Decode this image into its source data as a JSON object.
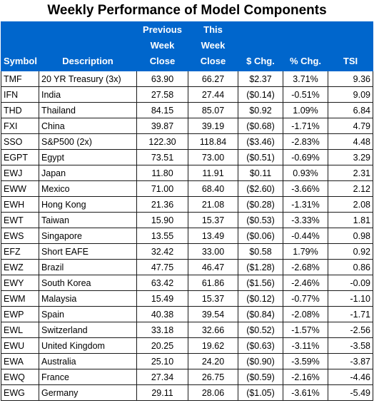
{
  "title": "Weekly Performance of Model Components",
  "columns": {
    "symbol": "Symbol",
    "description": "Description",
    "prev_close": [
      "Previous",
      "Week",
      "Close"
    ],
    "this_close": [
      "This",
      "Week",
      "Close"
    ],
    "dollar_chg": "$ Chg.",
    "pct_chg": "% Chg.",
    "tsi": "TSI"
  },
  "colors": {
    "header_bg": "#0066cc",
    "positive": "#13a23a",
    "negative": "#c00000"
  },
  "rows": [
    {
      "symbol": "TMF",
      "description": "20 YR Treasury (3x)",
      "prev": "63.90",
      "this": "66.27",
      "chg": "$2.37",
      "pct": "3.71%",
      "tsi": "9.36",
      "dir": "pos",
      "tsi_dir": "pos"
    },
    {
      "symbol": "IFN",
      "description": "India",
      "prev": "27.58",
      "this": "27.44",
      "chg": "($0.14)",
      "pct": "-0.51%",
      "tsi": "9.09",
      "dir": "neg",
      "tsi_dir": "pos"
    },
    {
      "symbol": "THD",
      "description": "Thailand",
      "prev": "84.15",
      "this": "85.07",
      "chg": "$0.92",
      "pct": "1.09%",
      "tsi": "6.84",
      "dir": "pos",
      "tsi_dir": "pos"
    },
    {
      "symbol": "FXI",
      "description": "China",
      "prev": "39.87",
      "this": "39.19",
      "chg": "($0.68)",
      "pct": "-1.71%",
      "tsi": "4.79",
      "dir": "neg",
      "tsi_dir": "pos"
    },
    {
      "symbol": "SSO",
      "description": "S&P500 (2x)",
      "prev": "122.30",
      "this": "118.84",
      "chg": "($3.46)",
      "pct": "-2.83%",
      "tsi": "4.48",
      "dir": "neg",
      "tsi_dir": "pos"
    },
    {
      "symbol": "EGPT",
      "description": "Egypt",
      "prev": "73.51",
      "this": "73.00",
      "chg": "($0.51)",
      "pct": "-0.69%",
      "tsi": "3.29",
      "dir": "neg",
      "tsi_dir": "pos"
    },
    {
      "symbol": "EWJ",
      "description": "Japan",
      "prev": "11.80",
      "this": "11.91",
      "chg": "$0.11",
      "pct": "0.93%",
      "tsi": "2.31",
      "dir": "pos",
      "tsi_dir": "pos"
    },
    {
      "symbol": "EWW",
      "description": "Mexico",
      "prev": "71.00",
      "this": "68.40",
      "chg": "($2.60)",
      "pct": "-3.66%",
      "tsi": "2.12",
      "dir": "neg",
      "tsi_dir": "pos"
    },
    {
      "symbol": "EWH",
      "description": "Hong Kong",
      "prev": "21.36",
      "this": "21.08",
      "chg": "($0.28)",
      "pct": "-1.31%",
      "tsi": "2.08",
      "dir": "neg",
      "tsi_dir": "pos"
    },
    {
      "symbol": "EWT",
      "description": "Taiwan",
      "prev": "15.90",
      "this": "15.37",
      "chg": "($0.53)",
      "pct": "-3.33%",
      "tsi": "1.81",
      "dir": "neg",
      "tsi_dir": "pos"
    },
    {
      "symbol": "EWS",
      "description": "Singapore",
      "prev": "13.55",
      "this": "13.49",
      "chg": "($0.06)",
      "pct": "-0.44%",
      "tsi": "0.98",
      "dir": "neg",
      "tsi_dir": "pos"
    },
    {
      "symbol": "EFZ",
      "description": "Short EAFE",
      "prev": "32.42",
      "this": "33.00",
      "chg": "$0.58",
      "pct": "1.79%",
      "tsi": "0.92",
      "dir": "pos",
      "tsi_dir": "pos"
    },
    {
      "symbol": "EWZ",
      "description": "Brazil",
      "prev": "47.75",
      "this": "46.47",
      "chg": "($1.28)",
      "pct": "-2.68%",
      "tsi": "0.86",
      "dir": "neg",
      "tsi_dir": "pos"
    },
    {
      "symbol": "EWY",
      "description": "South Korea",
      "prev": "63.42",
      "this": "61.86",
      "chg": "($1.56)",
      "pct": "-2.46%",
      "tsi": "-0.09",
      "dir": "neg",
      "tsi_dir": "neg"
    },
    {
      "symbol": "EWM",
      "description": "Malaysia",
      "prev": "15.49",
      "this": "15.37",
      "chg": "($0.12)",
      "pct": "-0.77%",
      "tsi": "-1.10",
      "dir": "neg",
      "tsi_dir": "neg"
    },
    {
      "symbol": "EWP",
      "description": "Spain",
      "prev": "40.38",
      "this": "39.54",
      "chg": "($0.84)",
      "pct": "-2.08%",
      "tsi": "-1.71",
      "dir": "neg",
      "tsi_dir": "neg"
    },
    {
      "symbol": "EWL",
      "description": "Switzerland",
      "prev": "33.18",
      "this": "32.66",
      "chg": "($0.52)",
      "pct": "-1.57%",
      "tsi": "-2.56",
      "dir": "neg",
      "tsi_dir": "neg"
    },
    {
      "symbol": "EWU",
      "description": "United Kingdom",
      "prev": "20.25",
      "this": "19.62",
      "chg": "($0.63)",
      "pct": "-3.11%",
      "tsi": "-3.58",
      "dir": "neg",
      "tsi_dir": "neg"
    },
    {
      "symbol": "EWA",
      "description": "Australia",
      "prev": "25.10",
      "this": "24.20",
      "chg": "($0.90)",
      "pct": "-3.59%",
      "tsi": "-3.87",
      "dir": "neg",
      "tsi_dir": "neg"
    },
    {
      "symbol": "EWQ",
      "description": "France",
      "prev": "27.34",
      "this": "26.75",
      "chg": "($0.59)",
      "pct": "-2.16%",
      "tsi": "-4.46",
      "dir": "neg",
      "tsi_dir": "neg"
    },
    {
      "symbol": "EWG",
      "description": "Germany",
      "prev": "29.11",
      "this": "28.06",
      "chg": "($1.05)",
      "pct": "-3.61%",
      "tsi": "-5.49",
      "dir": "neg",
      "tsi_dir": "neg"
    }
  ]
}
